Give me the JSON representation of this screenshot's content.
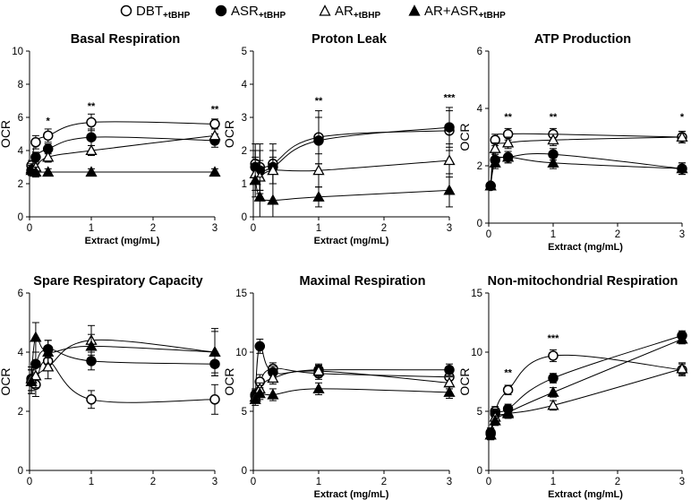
{
  "legend": [
    {
      "label": "DBT",
      "sub": "+tBHP",
      "marker": "open-circle"
    },
    {
      "label": "ASR",
      "sub": "+tBHP",
      "marker": "filled-circle"
    },
    {
      "label": "AR",
      "sub": "+tBHP",
      "marker": "open-triangle"
    },
    {
      "label": "AR+ASR",
      "sub": "+tBHP",
      "marker": "filled-triangle"
    }
  ],
  "chart_data": [
    {
      "type": "line",
      "title": "Basal Respiration",
      "xlabel": "Extract (mg/mL)",
      "ylabel": "OCR",
      "xlim": [
        0,
        3
      ],
      "ylim": [
        0,
        10
      ],
      "xticks": [
        0,
        1,
        2,
        3
      ],
      "yticks": [
        0,
        2,
        4,
        6,
        8,
        10
      ],
      "x": [
        0.03,
        0.1,
        0.3,
        1,
        3
      ],
      "series": [
        {
          "name": "DBT+tBHP",
          "values": [
            3.1,
            4.5,
            4.9,
            5.7,
            5.6
          ],
          "errors": [
            0.3,
            0.4,
            0.4,
            0.5,
            0.3
          ]
        },
        {
          "name": "ASR+tBHP",
          "values": [
            2.8,
            3.6,
            4.1,
            4.8,
            4.6
          ],
          "errors": [
            0.3,
            0.3,
            0.3,
            0.5,
            0.4
          ]
        },
        {
          "name": "AR+tBHP",
          "values": [
            2.9,
            3.0,
            3.6,
            4.0,
            4.9
          ],
          "errors": [
            0.3,
            0.2,
            0.3,
            0.3,
            0.4
          ]
        },
        {
          "name": "AR+ASR+tBHP",
          "values": [
            2.8,
            2.7,
            2.7,
            2.7,
            2.7
          ],
          "errors": [
            0.3,
            0.3,
            0.2,
            0.2,
            0.2
          ]
        }
      ],
      "annotations": [
        {
          "x": 0.3,
          "y": 5.6,
          "text": "*"
        },
        {
          "x": 1,
          "y": 6.5,
          "text": "**"
        },
        {
          "x": 3,
          "y": 6.3,
          "text": "**"
        }
      ]
    },
    {
      "type": "line",
      "title": "Proton Leak",
      "xlabel": "Extract (mg/mL)",
      "ylabel": "OCR",
      "xlim": [
        0,
        3
      ],
      "ylim": [
        0,
        5
      ],
      "xticks": [
        0,
        1,
        2,
        3
      ],
      "yticks": [
        0,
        1,
        2,
        3,
        4,
        5
      ],
      "x": [
        0.03,
        0.1,
        0.3,
        1,
        3
      ],
      "series": [
        {
          "name": "DBT+tBHP",
          "values": [
            1.6,
            1.5,
            1.6,
            2.4,
            2.6
          ],
          "errors": [
            0.6,
            0.7,
            0.6,
            0.8,
            0.6
          ]
        },
        {
          "name": "ASR+tBHP",
          "values": [
            1.5,
            1.4,
            1.5,
            2.3,
            2.7
          ],
          "errors": [
            0.5,
            0.6,
            0.5,
            0.7,
            0.6
          ]
        },
        {
          "name": "AR+tBHP",
          "values": [
            1.3,
            1.2,
            1.4,
            1.4,
            1.7
          ],
          "errors": [
            0.5,
            0.5,
            0.4,
            0.5,
            0.5
          ]
        },
        {
          "name": "AR+ASR+tBHP",
          "values": [
            1.1,
            0.6,
            0.5,
            0.6,
            0.8
          ],
          "errors": [
            0.5,
            0.6,
            0.5,
            0.3,
            0.5
          ]
        }
      ],
      "annotations": [
        {
          "x": 1,
          "y": 3.4,
          "text": "**"
        },
        {
          "x": 3,
          "y": 3.5,
          "text": "***"
        }
      ]
    },
    {
      "type": "line",
      "title": "ATP Production",
      "xlabel": "Extract (mg/mL)",
      "ylabel": "OCR",
      "xlim": [
        0,
        3
      ],
      "ylim": [
        0,
        6
      ],
      "xticks": [
        0,
        1,
        2,
        3
      ],
      "yticks": [
        0,
        2,
        4,
        6
      ],
      "x": [
        0.03,
        0.1,
        0.3,
        1,
        3
      ],
      "series": [
        {
          "name": "DBT+tBHP",
          "values": [
            1.3,
            2.9,
            3.1,
            3.1,
            3.0
          ],
          "errors": [
            0.1,
            0.2,
            0.2,
            0.2,
            0.2
          ]
        },
        {
          "name": "ASR+tBHP",
          "values": [
            1.3,
            2.2,
            2.3,
            2.4,
            1.9
          ],
          "errors": [
            0.1,
            0.2,
            0.2,
            0.2,
            0.2
          ]
        },
        {
          "name": "AR+tBHP",
          "values": [
            1.3,
            2.6,
            2.8,
            2.9,
            3.0
          ],
          "errors": [
            0.1,
            0.2,
            0.2,
            0.2,
            0.2
          ]
        },
        {
          "name": "AR+ASR+tBHP",
          "values": [
            1.3,
            2.1,
            2.3,
            2.1,
            1.9
          ],
          "errors": [
            0.1,
            0.2,
            0.2,
            0.2,
            0.2
          ]
        }
      ],
      "annotations": [
        {
          "x": 0.3,
          "y": 3.6,
          "text": "**"
        },
        {
          "x": 1,
          "y": 3.6,
          "text": "**"
        },
        {
          "x": 3,
          "y": 3.6,
          "text": "*"
        }
      ]
    },
    {
      "type": "line",
      "title": "Spare Respiratory Capacity",
      "xlabel": "",
      "ylabel": "OCR",
      "xlim": [
        0,
        3
      ],
      "ylim": [
        0,
        6
      ],
      "xticks": [
        0,
        1,
        2,
        3
      ],
      "yticks": [
        0,
        2,
        4,
        6
      ],
      "x": [
        0.03,
        0.1,
        0.3,
        1,
        3
      ],
      "series": [
        {
          "name": "DBT+tBHP",
          "values": [
            3.0,
            2.9,
            3.7,
            2.4,
            2.4
          ],
          "errors": [
            0.4,
            0.4,
            0.3,
            0.3,
            0.5
          ]
        },
        {
          "name": "ASR+tBHP",
          "values": [
            3.1,
            3.6,
            4.1,
            3.7,
            3.6
          ],
          "errors": [
            0.4,
            0.4,
            0.3,
            0.3,
            0.4
          ]
        },
        {
          "name": "AR+tBHP",
          "values": [
            3.1,
            3.2,
            3.5,
            4.4,
            4.0
          ],
          "errors": [
            0.4,
            0.4,
            0.4,
            0.5,
            0.7
          ]
        },
        {
          "name": "AR+ASR+tBHP",
          "values": [
            3.0,
            4.5,
            4.0,
            4.2,
            4.0
          ],
          "errors": [
            0.4,
            0.5,
            0.4,
            0.4,
            0.8
          ]
        }
      ],
      "annotations": []
    },
    {
      "type": "line",
      "title": "Maximal Respiration",
      "xlabel": "Extract (mg/mL)",
      "ylabel": "OCR",
      "xlim": [
        0,
        3
      ],
      "ylim": [
        0,
        15
      ],
      "xticks": [
        0,
        1,
        2,
        3
      ],
      "yticks": [
        0,
        5,
        10,
        15
      ],
      "x": [
        0.03,
        0.1,
        0.3,
        1,
        3
      ],
      "series": [
        {
          "name": "DBT+tBHP",
          "values": [
            6.4,
            7.5,
            8.6,
            8.2,
            7.9
          ],
          "errors": [
            0.5,
            0.6,
            0.5,
            0.5,
            0.5
          ]
        },
        {
          "name": "ASR+tBHP",
          "values": [
            6.3,
            10.5,
            8.3,
            8.5,
            8.5
          ],
          "errors": [
            0.5,
            0.6,
            0.5,
            0.5,
            0.5
          ]
        },
        {
          "name": "AR+tBHP",
          "values": [
            6.2,
            6.9,
            7.8,
            8.4,
            7.4
          ],
          "errors": [
            0.5,
            0.5,
            0.5,
            0.5,
            0.5
          ]
        },
        {
          "name": "AR+ASR+tBHP",
          "values": [
            6.0,
            6.5,
            6.4,
            6.9,
            6.6
          ],
          "errors": [
            0.5,
            0.5,
            0.5,
            0.5,
            0.5
          ]
        }
      ],
      "annotations": []
    },
    {
      "type": "line",
      "title": "Non-mitochondrial Respiration",
      "xlabel": "Extract (mg/mL)",
      "ylabel": "OCR",
      "xlim": [
        0,
        3
      ],
      "ylim": [
        0,
        15
      ],
      "xticks": [
        0,
        1,
        2,
        3
      ],
      "yticks": [
        0,
        5,
        10,
        15
      ],
      "x": [
        0.03,
        0.1,
        0.3,
        1,
        3
      ],
      "series": [
        {
          "name": "DBT+tBHP",
          "values": [
            3.2,
            5.0,
            6.8,
            9.7,
            8.5
          ],
          "errors": [
            0.4,
            0.4,
            0.4,
            0.5,
            0.5
          ]
        },
        {
          "name": "ASR+tBHP",
          "values": [
            3.1,
            4.8,
            5.2,
            7.8,
            11.4
          ],
          "errors": [
            0.4,
            0.4,
            0.4,
            0.4,
            0.4
          ]
        },
        {
          "name": "AR+tBHP",
          "values": [
            3.0,
            4.5,
            4.8,
            5.5,
            8.6
          ],
          "errors": [
            0.4,
            0.4,
            0.4,
            0.4,
            0.5
          ]
        },
        {
          "name": "AR+ASR+tBHP",
          "values": [
            3.0,
            4.2,
            4.9,
            6.6,
            11.1
          ],
          "errors": [
            0.4,
            0.4,
            0.4,
            0.4,
            0.4
          ]
        }
      ],
      "annotations": [
        {
          "x": 0.3,
          "y": 8.0,
          "text": "**"
        },
        {
          "x": 1,
          "y": 10.9,
          "text": "***"
        }
      ]
    }
  ]
}
